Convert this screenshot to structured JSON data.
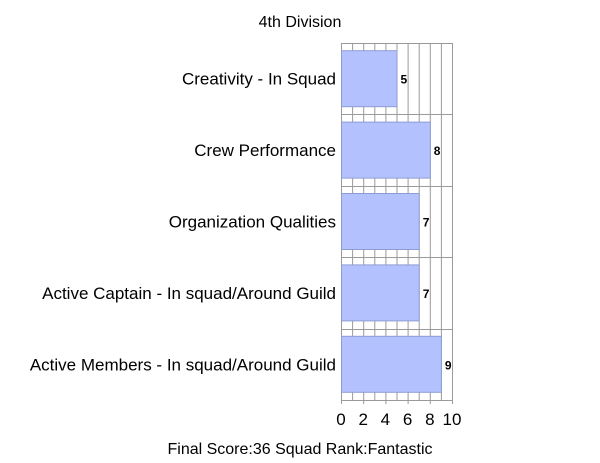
{
  "chart_data": {
    "type": "bar",
    "orientation": "horizontal",
    "title": "4th Division",
    "categories": [
      "Creativity - In Squad",
      "Crew Performance",
      "Organization Qualities",
      "Active Captain - In squad/Around Guild",
      "Active Members - In squad/Around Guild"
    ],
    "values": [
      5,
      8,
      7,
      7,
      9
    ],
    "xlim": [
      0,
      10
    ],
    "xticks": [
      "0",
      "2",
      "4",
      "6",
      "8",
      "10"
    ],
    "xlabel": "",
    "ylabel": "",
    "grid": true,
    "legend": false,
    "bar_color": "#b3c2ff",
    "bar_edge_color": "#8e9cd6"
  },
  "footer": {
    "text": "Final Score:36  Squad Rank:Fantastic"
  }
}
